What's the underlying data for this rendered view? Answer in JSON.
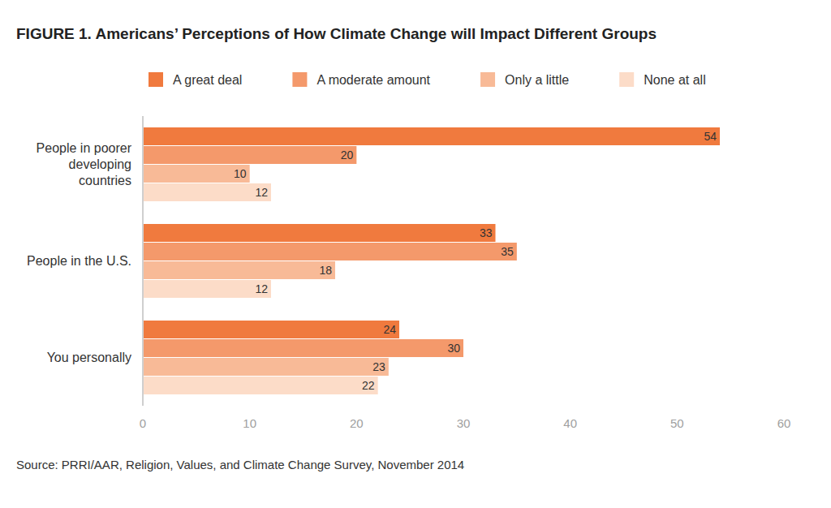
{
  "chart_data": {
    "type": "bar",
    "orientation": "horizontal",
    "title": "FIGURE 1.  Americans’ Perceptions of How Climate Change will Impact Different Groups",
    "categories": [
      "People in poorer developing countries",
      "People in the U.S.",
      "You personally"
    ],
    "series": [
      {
        "name": "A great deal",
        "color": "#f07a3e",
        "values": [
          54,
          33,
          24
        ]
      },
      {
        "name": "A moderate amount",
        "color": "#f4996b",
        "values": [
          20,
          35,
          30
        ]
      },
      {
        "name": "Only a little",
        "color": "#f8ba97",
        "values": [
          10,
          18,
          23
        ]
      },
      {
        "name": "None at all",
        "color": "#fcdcc8",
        "values": [
          12,
          12,
          22
        ]
      }
    ],
    "xlim": [
      0,
      60
    ],
    "xticks": [
      0,
      10,
      20,
      30,
      40,
      50,
      60
    ],
    "grid": false,
    "legend": "top",
    "data_labels": true,
    "annotations": [
      "Source: PRRI/AAR, Religion, Values, and Climate Change Survey, November 2014"
    ]
  }
}
